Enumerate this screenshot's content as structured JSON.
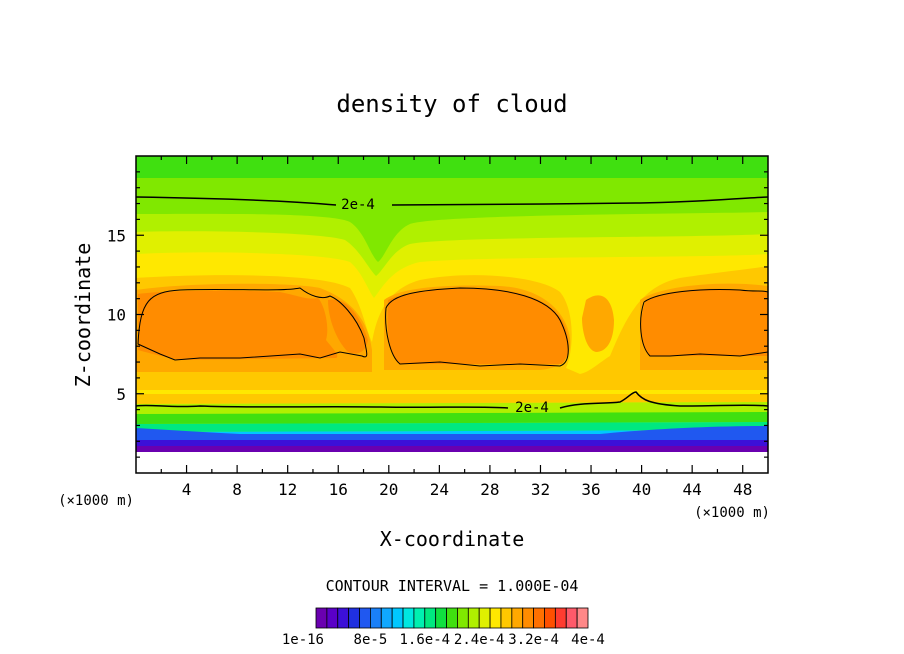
{
  "chart_data": {
    "type": "heatmap",
    "title": "density of cloud",
    "xlabel": "X-coordinate",
    "ylabel": "Z-coordinate",
    "x_unit_left": "(×1000 m)",
    "x_unit_right": "(×1000 m)",
    "xlim": [
      0,
      50
    ],
    "ylim": [
      0,
      20
    ],
    "x_ticks": [
      4,
      8,
      12,
      16,
      20,
      24,
      28,
      32,
      36,
      40,
      44,
      48
    ],
    "y_ticks": [
      5,
      10,
      15
    ],
    "grid": false,
    "contour_interval_text": "CONTOUR INTERVAL = 1.000E-04",
    "contour_labels": [
      {
        "text": "2e-4",
        "x": 16.8,
        "z": 17.0
      },
      {
        "text": "2e-4",
        "x": 31.2,
        "z": 4.1
      }
    ],
    "colorbar": {
      "colors": [
        "#6a00b0",
        "#5a00c8",
        "#3c10d8",
        "#2030e0",
        "#2058f0",
        "#1a80f8",
        "#10a8ff",
        "#00c8ff",
        "#00e8e0",
        "#00f0b0",
        "#00e880",
        "#10e040",
        "#40e010",
        "#80e800",
        "#b0f000",
        "#e0f000",
        "#ffe800",
        "#ffc800",
        "#ffa800",
        "#ff8c00",
        "#ff7000",
        "#ff5000",
        "#ff3c30",
        "#ff5a6a",
        "#ff8888"
      ],
      "tick_labels": [
        "1e-16",
        "8e-5",
        "1.6e-4",
        "2.4e-4",
        "3.2e-4",
        "4e-4"
      ]
    },
    "field_summary": {
      "top_layer_value": 0.00015,
      "upper_band_value": 0.00024,
      "core_max_value": 0.00036,
      "lower_band_value": 0.0002,
      "cloud_base_z": 1.5,
      "cores": [
        {
          "x_start": 0,
          "x_end": 19,
          "z_bottom": 7,
          "z_top": 11.5
        },
        {
          "x_start": 19.5,
          "x_end": 34.5,
          "z_bottom": 7,
          "z_top": 11.8
        },
        {
          "x_start": 39.5,
          "x_end": 50,
          "z_bottom": 7,
          "z_top": 11.5
        }
      ]
    }
  }
}
